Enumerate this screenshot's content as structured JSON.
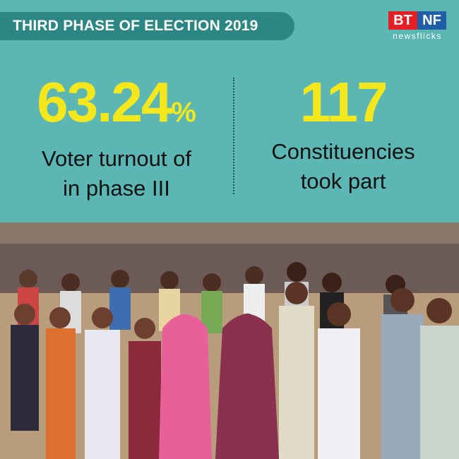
{
  "header": {
    "title": "THIRD PHASE OF ELECTION 2019",
    "logo": {
      "left": "BT",
      "right": "NF",
      "tagline": "newsflicks"
    }
  },
  "stats": [
    {
      "value": "63.24",
      "unit": "%",
      "label_lines": [
        "Voter turnout of",
        "in phase III"
      ]
    },
    {
      "value": "117",
      "label_lines": [
        "Constituencies",
        "took part"
      ]
    }
  ]
}
